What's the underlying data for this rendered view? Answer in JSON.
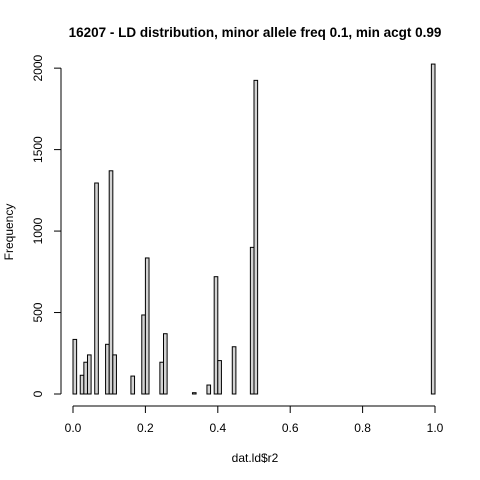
{
  "chart_data": {
    "type": "bar",
    "title": "16207 - LD distribution, minor allele freq 0.1, min acgt 0.99",
    "xlabel": "dat.ld$r2",
    "ylabel": "Frequency",
    "bin_width": 0.01,
    "xlim": [
      0,
      1
    ],
    "ylim": [
      0,
      2050
    ],
    "x_ticks": [
      0,
      0.2,
      0.4,
      0.6,
      0.8,
      1.0
    ],
    "x_tick_labels": [
      "0.0",
      "0.2",
      "0.4",
      "0.6",
      "0.8",
      "1.0"
    ],
    "y_ticks": [
      0,
      500,
      1000,
      1500,
      2000
    ],
    "y_tick_labels": [
      "0",
      "500",
      "1000",
      "1500",
      "2000"
    ],
    "grid": false,
    "bars": [
      {
        "start": 0.0,
        "value": 335
      },
      {
        "start": 0.02,
        "value": 115
      },
      {
        "start": 0.03,
        "value": 195
      },
      {
        "start": 0.04,
        "value": 240
      },
      {
        "start": 0.06,
        "value": 1295
      },
      {
        "start": 0.09,
        "value": 305
      },
      {
        "start": 0.1,
        "value": 1370
      },
      {
        "start": 0.11,
        "value": 240
      },
      {
        "start": 0.16,
        "value": 110
      },
      {
        "start": 0.19,
        "value": 485
      },
      {
        "start": 0.2,
        "value": 835
      },
      {
        "start": 0.24,
        "value": 195
      },
      {
        "start": 0.25,
        "value": 370
      },
      {
        "start": 0.33,
        "value": 8
      },
      {
        "start": 0.37,
        "value": 55
      },
      {
        "start": 0.39,
        "value": 720
      },
      {
        "start": 0.4,
        "value": 205
      },
      {
        "start": 0.44,
        "value": 290
      },
      {
        "start": 0.49,
        "value": 900
      },
      {
        "start": 0.5,
        "value": 1925
      },
      {
        "start": 0.99,
        "value": 2025
      }
    ]
  }
}
